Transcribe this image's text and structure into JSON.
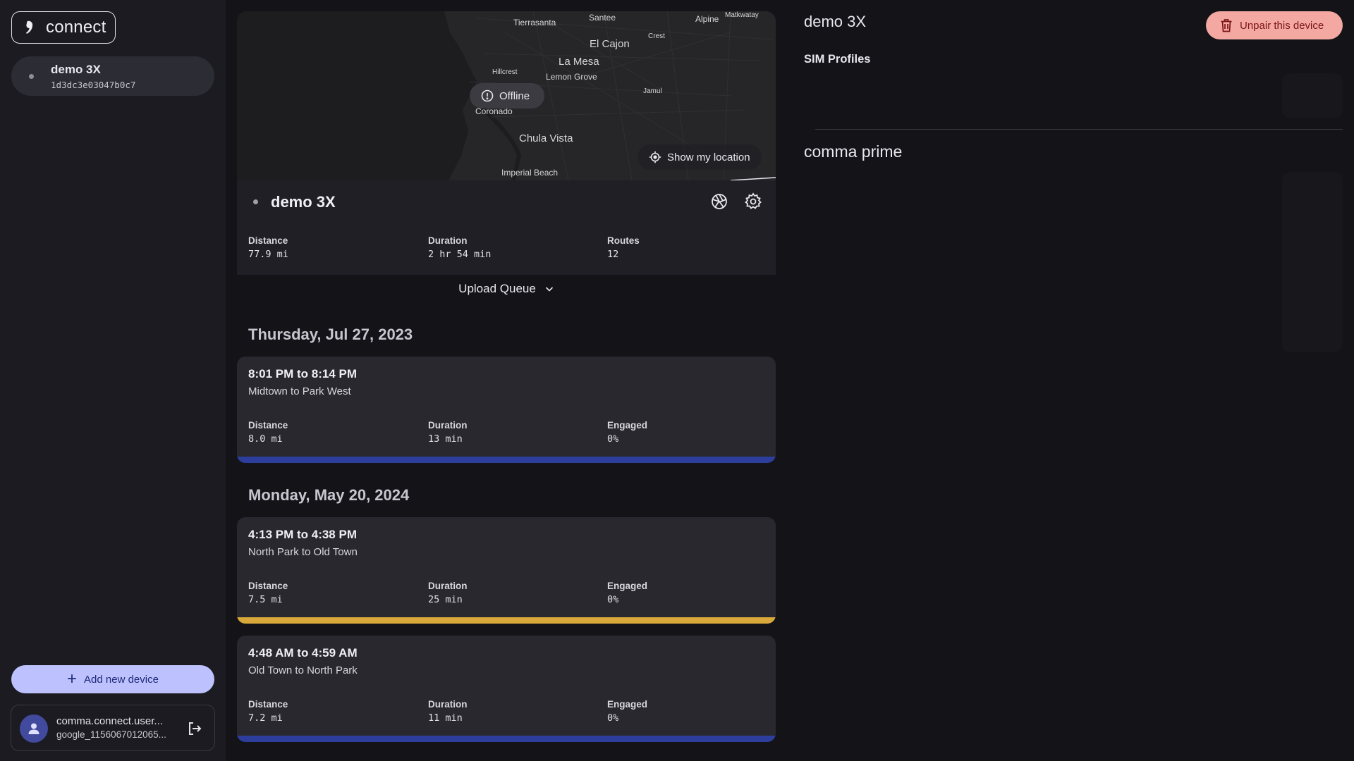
{
  "sidebar": {
    "logo_text": "connect",
    "device": {
      "name": "demo 3X",
      "dongle_id": "1d3dc3e03047b0c7"
    },
    "add_device_label": "Add new device",
    "user": {
      "name": "comma.connect.user...",
      "id": "google_1156067012065..."
    }
  },
  "map": {
    "labels": [
      "Tierrasanta",
      "Santee",
      "Alpine",
      "Matkwatay",
      "Crest",
      "El Cajon",
      "Hillcrest",
      "La Mesa",
      "Lemon Grove",
      "Jamul",
      "Coronado",
      "Chula Vista",
      "Imperial Beach"
    ],
    "offline_label": "Offline",
    "show_location_label": "Show my location"
  },
  "device_card": {
    "name": "demo 3X",
    "stats": [
      {
        "label": "Distance",
        "value": "77.9 mi"
      },
      {
        "label": "Duration",
        "value": "2 hr 54 min"
      },
      {
        "label": "Routes",
        "value": "12"
      }
    ],
    "upload_queue_label": "Upload Queue"
  },
  "days": [
    {
      "title": "Thursday, Jul 27, 2023",
      "routes": [
        {
          "time": "8:01 PM to 8:14 PM",
          "location": "Midtown to Park West",
          "stats": [
            {
              "label": "Distance",
              "value": "8.0 mi"
            },
            {
              "label": "Duration",
              "value": "13 min"
            },
            {
              "label": "Engaged",
              "value": "0%"
            }
          ],
          "bar_color": "#2c3d9b"
        }
      ]
    },
    {
      "title": "Monday, May 20, 2024",
      "routes": [
        {
          "time": "4:13 PM to 4:38 PM",
          "location": "North Park to Old Town",
          "stats": [
            {
              "label": "Distance",
              "value": "7.5 mi"
            },
            {
              "label": "Duration",
              "value": "25 min"
            },
            {
              "label": "Engaged",
              "value": "0%"
            }
          ],
          "bar_color": "#d9a83a"
        },
        {
          "time": "4:48 AM to 4:59 AM",
          "location": "Old Town to North Park",
          "stats": [
            {
              "label": "Distance",
              "value": "7.2 mi"
            },
            {
              "label": "Duration",
              "value": "11 min"
            },
            {
              "label": "Engaged",
              "value": "0%"
            }
          ],
          "bar_color": "#2c3d9b"
        }
      ]
    }
  ],
  "right": {
    "title": "demo 3X",
    "unpair_label": "Unpair this device",
    "sim_profiles_label": "SIM Profiles",
    "prime_label": "comma prime"
  },
  "colors": {
    "background": "#131318",
    "sidebar": "#1b1b21",
    "accent": "#bdc2ff",
    "danger": "#f3a9a2",
    "route_blue": "#2c3d9b",
    "route_yellow": "#d9a83a"
  },
  "icons": [
    "comma-logo-icon",
    "plus-icon",
    "person-icon",
    "logout-icon",
    "alert-circle-icon",
    "location-target-icon",
    "camera-aperture-icon",
    "gear-icon",
    "chevron-down-icon",
    "trash-icon"
  ]
}
